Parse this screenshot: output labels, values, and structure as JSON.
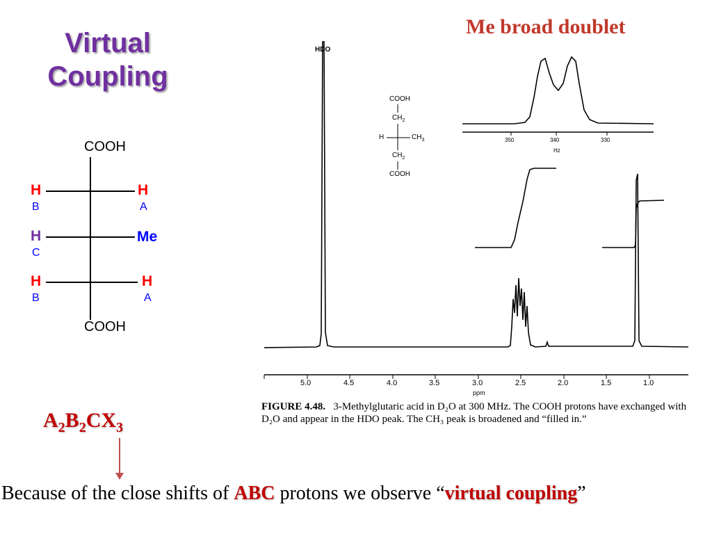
{
  "title": {
    "line1": "Virtual",
    "line2": "Coupling"
  },
  "molecule": {
    "top": "COOH",
    "bottom": "COOH",
    "row1": {
      "left": "H",
      "left_sub": "B",
      "right": "H",
      "right_sub": "A"
    },
    "row2": {
      "left": "H",
      "left_sub": "C",
      "right": "Me"
    },
    "row3": {
      "left": "H",
      "left_sub": "B",
      "right": "H",
      "right_sub": "A"
    }
  },
  "spectrum": {
    "hdo_label": "HDO",
    "ppm_ticks": [
      "5.0",
      "4.5",
      "4.0",
      "3.5",
      "3.0",
      "2.5",
      "2.0",
      "1.5",
      "1.0"
    ],
    "ppm_label": "ppm",
    "inset_ticks": [
      "350",
      "340",
      "330"
    ],
    "inset_unit": "Hz",
    "structure": {
      "top": "COOH",
      "ch2_top": "CH",
      "ch2_sub": "2",
      "h": "H",
      "ch3": "CH",
      "ch3_sub": "3",
      "ch2_bot": "CH",
      "ch2_bot_sub": "2",
      "bottom": "COOH"
    }
  },
  "header_label": "Me broad doublet",
  "caption": {
    "figure": "FIGURE 4.48.",
    "text": "3-Methylglutaric acid in D₂O at 300 MHz. The COOH protons have exchanged with D₂O and appear in the HDO peak. The CH₃ peak is broadened and “filled in.”"
  },
  "formula": {
    "a": "A",
    "a_sub": "2",
    "b": "B",
    "b_sub": "2",
    "c": "C",
    "x": "X",
    "x_sub": "3"
  },
  "sentence": {
    "part1": "Because of the close shifts of ",
    "abc": "ABC",
    "part2": " protons we observe “",
    "vc": "virtual coupling",
    "part3": "”"
  },
  "colors": {
    "title": "#7030a0",
    "red": "#c00000",
    "blue": "#0000ff",
    "arrow": "#c0504d"
  }
}
